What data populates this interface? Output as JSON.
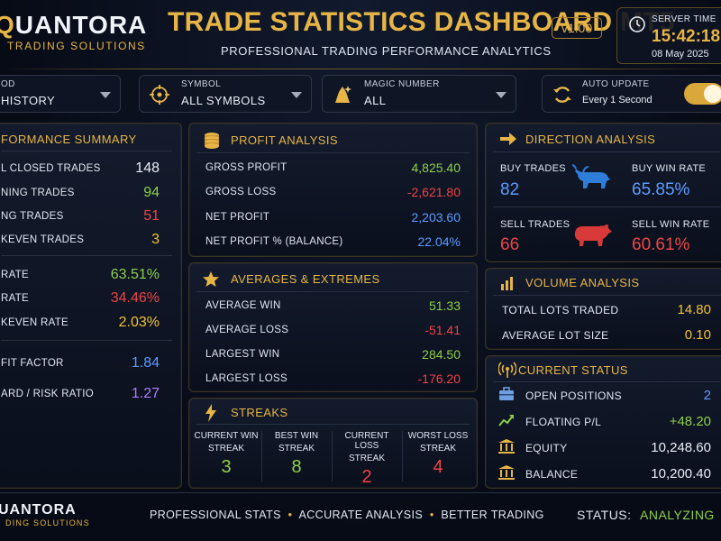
{
  "header": {
    "brand": "QUANTORA",
    "brand_sub": "TRADING SOLUTIONS",
    "title": "TRADE STATISTICS DASHBOARD MT5",
    "subtitle": "PROFESSIONAL TRADING PERFORMANCE ANALYTICS",
    "version": "v1.00",
    "server_time_label": "SERVER TIME",
    "server_time": "15:42:18",
    "server_date": "08 May 2025"
  },
  "filters": {
    "period_label": "OD",
    "period_value": "HISTORY",
    "symbol_label": "SYMBOL",
    "symbol_value": "ALL SYMBOLS",
    "magic_label": "MAGIC NUMBER",
    "magic_value": "ALL",
    "auto_update_label": "AUTO UPDATE",
    "auto_update_value": "Every 1 Second",
    "auto_update_on": true
  },
  "performance": {
    "title": "FORMANCE SUMMARY",
    "rows": [
      {
        "label": "L CLOSED TRADES",
        "value": "148",
        "color": "#e8edf6"
      },
      {
        "label": "NING TRADES",
        "value": "94",
        "color": "#8fcf4a"
      },
      {
        "label": "NG TRADES",
        "value": "51",
        "color": "#ee4545"
      },
      {
        "label": "KEVEN TRADES",
        "value": "3",
        "color": "#f2c230"
      }
    ],
    "rates": [
      {
        "label": "RATE",
        "value": "63.51%",
        "color": "#8fcf4a"
      },
      {
        "label": "RATE",
        "value": "34.46%",
        "color": "#ee4545"
      },
      {
        "label": "KEVEN RATE",
        "value": "2.03%",
        "color": "#f2c230"
      }
    ],
    "ratios": [
      {
        "label": "FIT FACTOR",
        "value": "1.84",
        "color": "#5d9bff"
      },
      {
        "label": "ARD / RISK RATIO",
        "value": "1.27",
        "color": "#b07cff"
      }
    ]
  },
  "profit": {
    "title": "PROFIT ANALYSIS",
    "rows": [
      {
        "label": "GROSS PROFIT",
        "value": "4,825.40",
        "color": "#8fcf4a"
      },
      {
        "label": "GROSS LOSS",
        "value": "-2,621.80",
        "color": "#ee4545"
      },
      {
        "label": "NET PROFIT",
        "value": "2,203.60",
        "color": "#5d9bff"
      },
      {
        "label": "NET PROFIT % (BALANCE)",
        "value": "22.04%",
        "color": "#5d9bff"
      }
    ]
  },
  "averages": {
    "title": "AVERAGES & EXTREMES",
    "rows": [
      {
        "label": "AVERAGE WIN",
        "value": "51.33",
        "color": "#8fcf4a"
      },
      {
        "label": "AVERAGE LOSS",
        "value": "-51.41",
        "color": "#ee4545"
      },
      {
        "label": "LARGEST WIN",
        "value": "284.50",
        "color": "#8fcf4a"
      },
      {
        "label": "LARGEST LOSS",
        "value": "-176.20",
        "color": "#ee4545"
      }
    ]
  },
  "streaks": {
    "title": "STREAKS",
    "items": [
      {
        "label1": "CURRENT WIN",
        "label2": "STREAK",
        "value": "3",
        "color": "#8fcf4a"
      },
      {
        "label1": "BEST WIN",
        "label2": "STREAK",
        "value": "8",
        "color": "#8fcf4a"
      },
      {
        "label1": "CURRENT LOSS",
        "label2": "STREAK",
        "value": "2",
        "color": "#ee4545"
      },
      {
        "label1": "WORST LOSS",
        "label2": "STREAK",
        "value": "4",
        "color": "#ee4545"
      }
    ]
  },
  "direction": {
    "title": "DIRECTION ANALYSIS",
    "buy_trades_label": "BUY TRADES",
    "buy_trades": "82",
    "buy_win_rate_label": "BUY WIN RATE",
    "buy_win_rate": "65.85%",
    "sell_trades_label": "SELL TRADES",
    "sell_trades": "66",
    "sell_win_rate_label": "SELL WIN RATE",
    "sell_win_rate": "60.61%"
  },
  "volume": {
    "title": "VOLUME ANALYSIS",
    "rows": [
      {
        "label": "TOTAL LOTS TRADED",
        "value": "14.80",
        "color": "#f2c230"
      },
      {
        "label": "AVERAGE LOT SIZE",
        "value": "0.10",
        "color": "#f2c230"
      }
    ]
  },
  "status": {
    "title": "CURRENT STATUS",
    "rows": [
      {
        "icon": "briefcase-icon",
        "label": "OPEN POSITIONS",
        "value": "2",
        "color": "#5d9bff"
      },
      {
        "icon": "chart-up-icon",
        "label": "FLOATING P/L",
        "value": "+48.20",
        "color": "#8fcf4a"
      },
      {
        "icon": "bank-icon",
        "label": "EQUITY",
        "value": "10,248.60",
        "color": "#e8edf6"
      },
      {
        "icon": "bank-icon",
        "label": "BALANCE",
        "value": "10,200.40",
        "color": "#e8edf6"
      }
    ]
  },
  "footer": {
    "brand": "UANTORA",
    "brand_sub": "DING SOLUTIONS",
    "tagline_1": "PROFESSIONAL STATS",
    "tagline_2": "ACCURATE ANALYSIS",
    "tagline_3": "BETTER TRADING",
    "status_label": "STATUS:",
    "status_value": "ANALYZING"
  }
}
